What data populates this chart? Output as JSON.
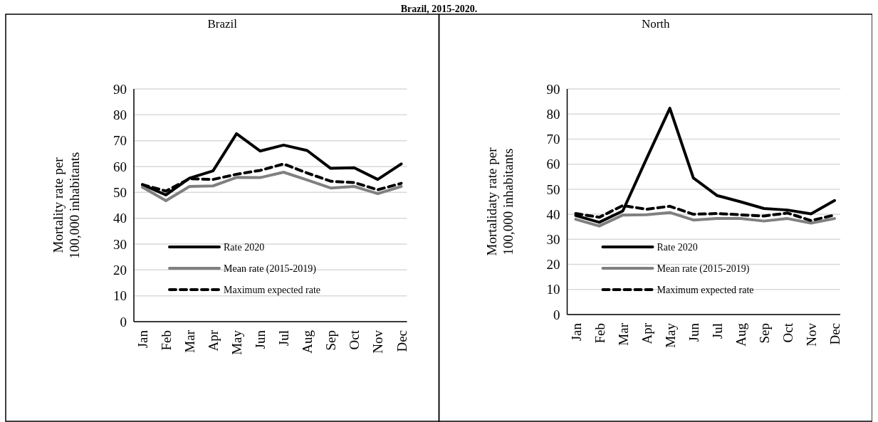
{
  "chart_data": [
    {
      "type": "line",
      "title": "Brazil",
      "ylabel": "Mortality rate per\n100,000 inhabitants",
      "annotations": [
        "Brazil, 2015-2020."
      ],
      "categories": [
        "Jan",
        "Feb",
        "Mar",
        "Apr",
        "May",
        "Jun",
        "Jul",
        "Aug",
        "Sep",
        "Oct",
        "Nov",
        "Dec"
      ],
      "ylim": [
        0,
        90
      ],
      "yticks": [
        0,
        10,
        20,
        30,
        40,
        50,
        60,
        70,
        80,
        90
      ],
      "grid": "y",
      "legend": "bottom",
      "marker": "none",
      "series": [
        {
          "name": "Rate 2020",
          "color": "#000000",
          "line_style": "solid",
          "values": [
            53,
            49,
            55.5,
            58.3,
            72.7,
            66,
            68.3,
            66.2,
            59.3,
            59.5,
            55,
            61
          ]
        },
        {
          "name": "Mean rate (2015-2019)",
          "color": "#808080",
          "line_style": "solid",
          "values": [
            52,
            46.8,
            52.3,
            52.5,
            55.8,
            55.7,
            57.8,
            54.8,
            51.7,
            52.3,
            49.5,
            52.3
          ]
        },
        {
          "name": "Maximum expected rate",
          "color": "#000000",
          "line_style": "dashed",
          "values": [
            53,
            50.5,
            55.3,
            55,
            57,
            58.5,
            61,
            57.5,
            54.3,
            53.8,
            51,
            53.5
          ]
        }
      ]
    },
    {
      "type": "line",
      "title": "North",
      "ylabel": "Mortalidaty rate per\n100,000 inhabitants",
      "categories": [
        "Jan",
        "Feb",
        "Mar",
        "Apr",
        "May",
        "Jun",
        "Jul",
        "Aug",
        "Sep",
        "Oct",
        "Nov",
        "Dec"
      ],
      "ylim": [
        0,
        90
      ],
      "yticks": [
        0,
        10,
        20,
        30,
        40,
        50,
        60,
        70,
        80,
        90
      ],
      "grid": "y",
      "legend": "bottom",
      "marker": "none",
      "series": [
        {
          "name": "Rate 2020",
          "color": "#000000",
          "line_style": "solid",
          "values": [
            39.5,
            36.8,
            41.3,
            62,
            82.3,
            54.5,
            47.5,
            45,
            42.3,
            41.7,
            40.2,
            45.5
          ]
        },
        {
          "name": "Mean rate (2015-2019)",
          "color": "#808080",
          "line_style": "solid",
          "values": [
            38,
            35.3,
            39.7,
            39.8,
            40.7,
            37.7,
            38.3,
            38.3,
            37.3,
            38.3,
            36.5,
            38.3
          ]
        },
        {
          "name": "Maximum expected rate",
          "color": "#000000",
          "line_style": "dashed",
          "values": [
            40.3,
            38.8,
            43.5,
            42,
            43.2,
            40,
            40.3,
            39.8,
            39.3,
            40.5,
            37.5,
            39.7
          ]
        }
      ]
    }
  ]
}
